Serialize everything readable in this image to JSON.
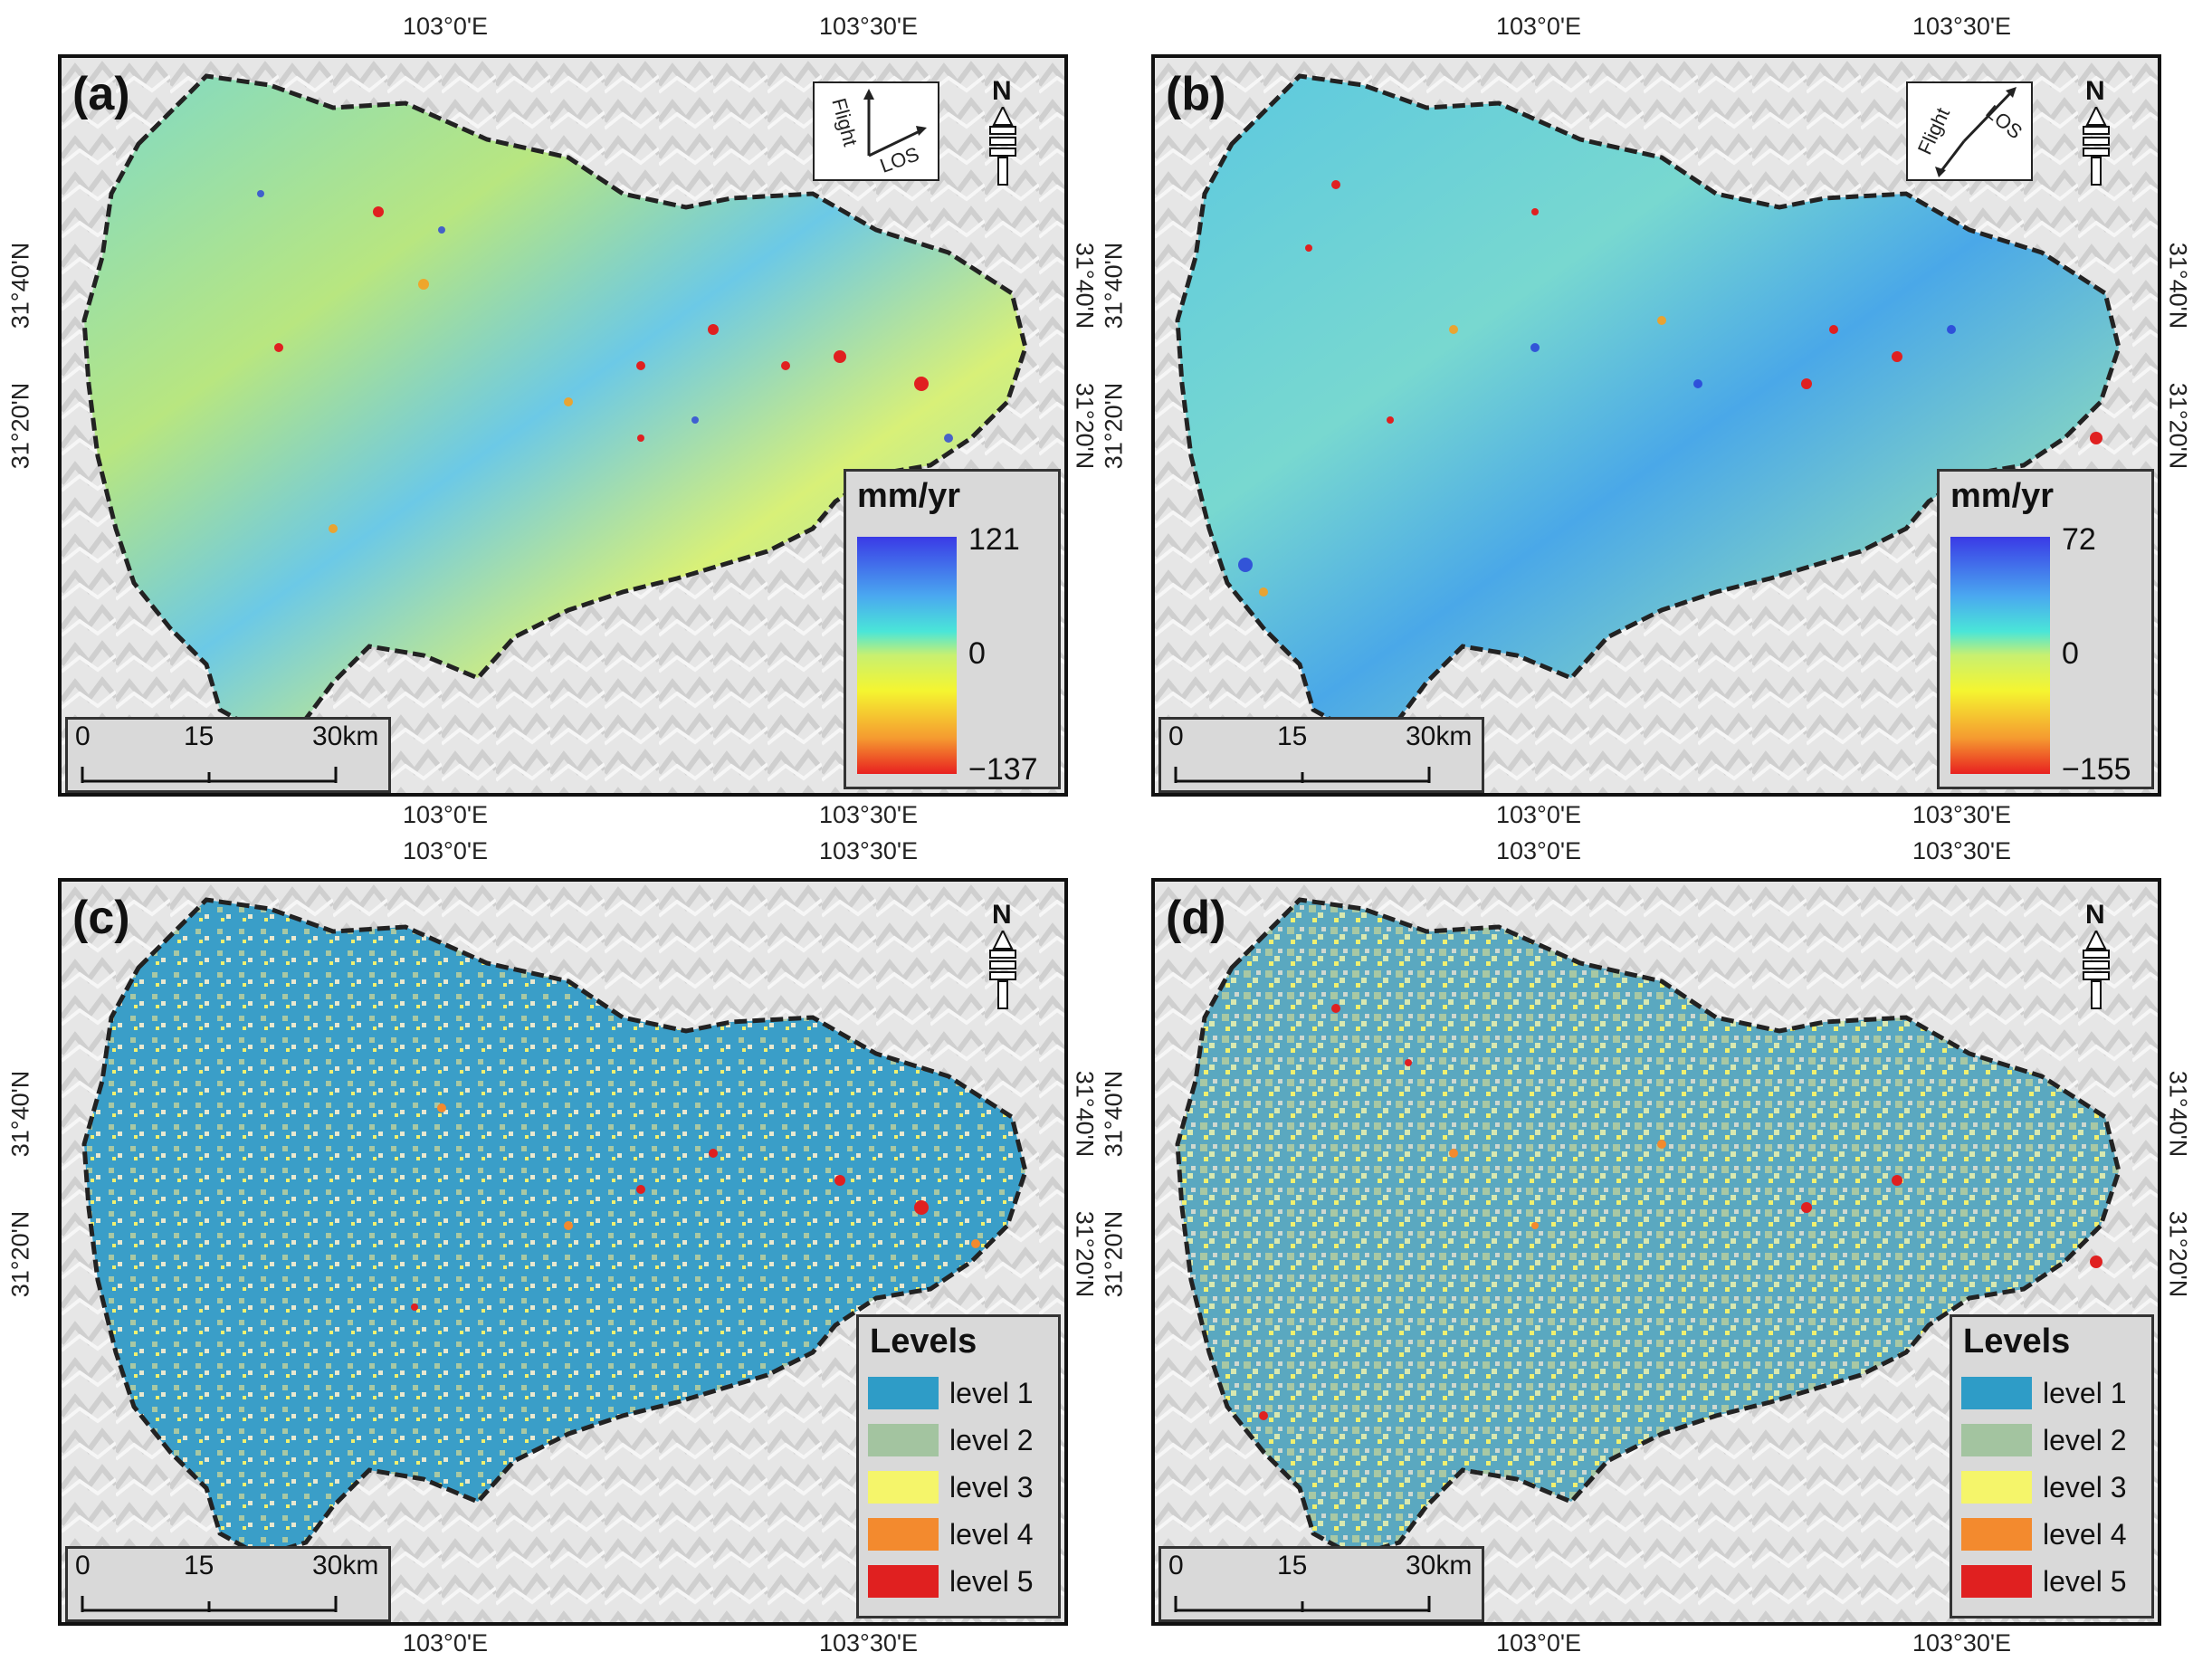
{
  "graticule": {
    "lon_left": "103°0'E",
    "lon_right": "103°30'E",
    "lat_top": "31°40'N",
    "lat_bottom": "31°20'N"
  },
  "panels": [
    {
      "letter": "(a)",
      "type": "velocity",
      "legend_title": "mm/yr",
      "cb_max": "121",
      "cb_mid": "0",
      "cb_min": "−137",
      "los_flight": "Flight",
      "los_los": "LOS",
      "scale": [
        "0",
        "15",
        "30km"
      ]
    },
    {
      "letter": "(b)",
      "type": "velocity",
      "legend_title": "mm/yr",
      "cb_max": "72",
      "cb_mid": "0",
      "cb_min": "−155",
      "los_flight": "Flight",
      "los_los": "LOS",
      "scale": [
        "0",
        "15",
        "30km"
      ]
    },
    {
      "letter": "(c)",
      "type": "levels",
      "legend_title": "Levels",
      "levels": [
        "level 1",
        "level 2",
        "level 3",
        "level 4",
        "level 5"
      ],
      "scale": [
        "0",
        "15",
        "30km"
      ]
    },
    {
      "letter": "(d)",
      "type": "levels",
      "legend_title": "Levels",
      "levels": [
        "level 1",
        "level 2",
        "level 3",
        "level 4",
        "level 5"
      ],
      "scale": [
        "0",
        "15",
        "30km"
      ]
    }
  ],
  "north_label": "N",
  "colors": {
    "level1": "#2e9cc7",
    "level2": "#a3c4a0",
    "level3": "#f5f56a",
    "level4": "#f38a2e",
    "level5": "#e02020",
    "hillshade": "#e4e4e4",
    "boundary": "#222222"
  }
}
